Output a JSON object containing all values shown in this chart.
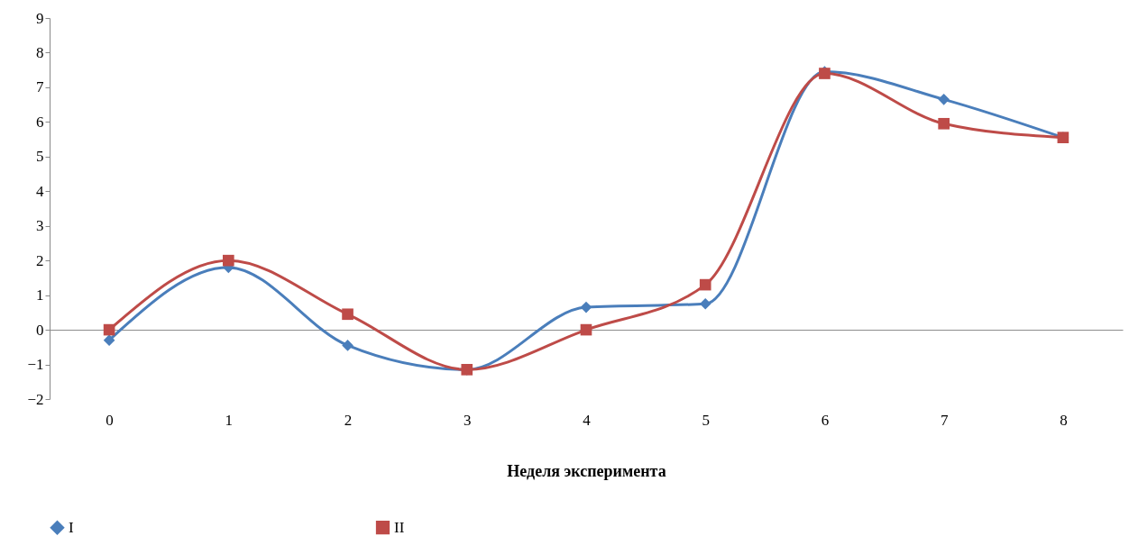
{
  "chart_data": {
    "type": "line",
    "xlabel": "Неделя эксперимента",
    "categories": [
      "0",
      "1",
      "2",
      "3",
      "4",
      "5",
      "6",
      "7",
      "8"
    ],
    "series": [
      {
        "name": "I",
        "color": "#4a7ebb",
        "marker": "diamond",
        "values": [
          -0.3,
          1.8,
          -0.45,
          -1.15,
          0.65,
          0.75,
          7.45,
          6.65,
          5.55
        ]
      },
      {
        "name": "II",
        "color": "#be4b48",
        "marker": "square",
        "values": [
          0,
          2.0,
          0.45,
          -1.15,
          0,
          1.3,
          7.4,
          5.95,
          5.55
        ]
      }
    ],
    "ylim": [
      -2,
      9
    ],
    "yticks": [
      -2,
      -1,
      0,
      1,
      2,
      3,
      4,
      5,
      6,
      7,
      8,
      9
    ],
    "legend": "bottom",
    "line_style": "solid"
  }
}
